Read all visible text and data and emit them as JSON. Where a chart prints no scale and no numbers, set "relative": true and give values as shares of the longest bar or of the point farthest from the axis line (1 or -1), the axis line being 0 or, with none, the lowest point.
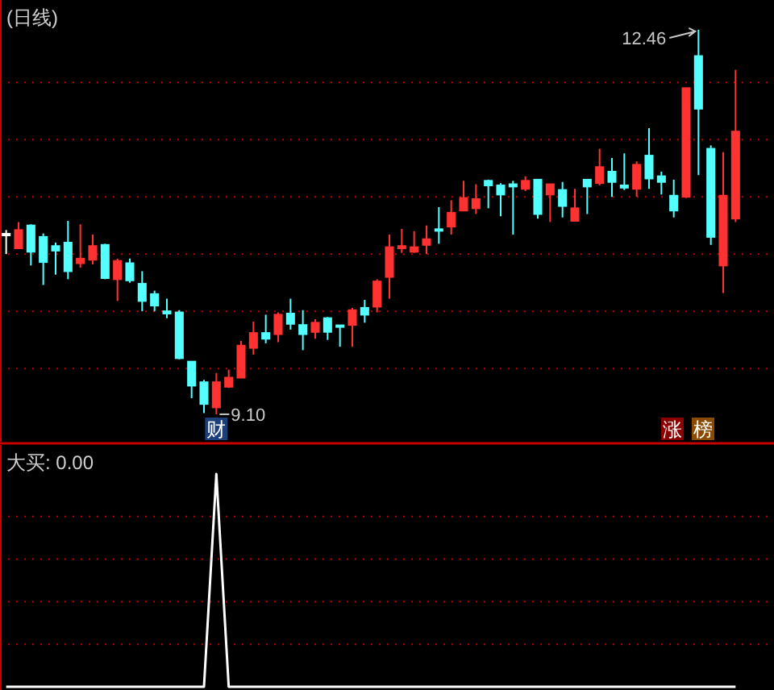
{
  "chart_data": [
    {
      "type": "candlestick",
      "title": "(日线)",
      "categories": [
        null,
        null,
        null,
        null,
        null,
        null,
        null,
        null,
        null,
        null,
        null,
        null,
        null,
        null,
        null,
        null,
        null,
        null,
        null,
        null,
        null,
        null,
        null,
        null,
        null,
        null,
        null,
        null,
        null,
        null,
        null,
        null,
        null,
        null,
        null,
        null,
        null,
        null,
        null,
        null,
        null,
        null,
        null,
        null,
        null,
        null,
        null,
        null,
        null,
        null,
        null,
        null,
        null,
        null,
        null,
        null,
        null,
        null,
        null,
        null
      ],
      "ohlc": [
        [
          10.67,
          10.71,
          10.5,
          10.67
        ],
        [
          10.55,
          10.78,
          10.55,
          10.71
        ],
        [
          10.75,
          10.76,
          10.4,
          10.52
        ],
        [
          10.65,
          10.68,
          10.23,
          10.43
        ],
        [
          10.57,
          10.6,
          10.32,
          10.53
        ],
        [
          10.6,
          10.79,
          10.28,
          10.35
        ],
        [
          10.42,
          10.76,
          10.38,
          10.46
        ],
        [
          10.45,
          10.67,
          10.41,
          10.57
        ],
        [
          10.58,
          10.59,
          10.28,
          10.29
        ],
        [
          10.28,
          10.46,
          10.09,
          10.44
        ],
        [
          10.42,
          10.46,
          10.25,
          10.27
        ],
        [
          10.24,
          10.35,
          10.0,
          10.09
        ],
        [
          10.15,
          10.18,
          10.0,
          10.05
        ],
        [
          10.0,
          10.11,
          9.94,
          9.98
        ],
        [
          9.99,
          10.01,
          9.58,
          9.59
        ],
        [
          9.56,
          9.56,
          9.24,
          9.35
        ],
        [
          9.38,
          9.4,
          9.11,
          9.19
        ],
        [
          9.16,
          9.46,
          9.1,
          9.38
        ],
        [
          9.34,
          9.49,
          9.33,
          9.42
        ],
        [
          9.42,
          9.74,
          9.42,
          9.7
        ],
        [
          9.68,
          9.91,
          9.62,
          9.81
        ],
        [
          9.81,
          9.97,
          9.72,
          9.76
        ],
        [
          9.8,
          9.99,
          9.73,
          9.97
        ],
        [
          9.98,
          10.11,
          9.84,
          9.89
        ],
        [
          9.88,
          10.01,
          9.66,
          9.8
        ],
        [
          9.82,
          9.93,
          9.76,
          9.9
        ],
        [
          9.94,
          9.95,
          9.75,
          9.82
        ],
        [
          9.88,
          9.88,
          9.69,
          9.87
        ],
        [
          9.88,
          10.03,
          9.69,
          10.01
        ],
        [
          10.03,
          10.1,
          9.9,
          9.97
        ],
        [
          10.04,
          10.28,
          9.99,
          10.26
        ],
        [
          10.3,
          10.67,
          10.11,
          10.56
        ],
        [
          10.55,
          10.72,
          10.51,
          10.57
        ],
        [
          10.52,
          10.7,
          10.51,
          10.56
        ],
        [
          10.58,
          10.75,
          10.5,
          10.63
        ],
        [
          10.72,
          10.91,
          10.59,
          10.71
        ],
        [
          10.74,
          10.97,
          10.67,
          10.86
        ],
        [
          10.88,
          11.14,
          10.88,
          10.99
        ],
        [
          10.9,
          11.11,
          10.85,
          10.98
        ],
        [
          11.14,
          11.15,
          10.9,
          11.1
        ],
        [
          11.1,
          11.12,
          10.83,
          11.02
        ],
        [
          11.11,
          11.14,
          10.67,
          11.09
        ],
        [
          11.07,
          11.18,
          11.05,
          11.14
        ],
        [
          11.15,
          11.15,
          10.81,
          10.85
        ],
        [
          11.02,
          11.11,
          10.78,
          11.11
        ],
        [
          11.06,
          11.13,
          10.82,
          10.92
        ],
        [
          10.79,
          11.07,
          10.79,
          10.9
        ],
        [
          11.15,
          11.15,
          10.85,
          11.09
        ],
        [
          11.12,
          11.42,
          11.1,
          11.26
        ],
        [
          11.22,
          11.34,
          11.0,
          11.13
        ],
        [
          11.1,
          11.38,
          11.06,
          11.08
        ],
        [
          11.07,
          11.31,
          11.0,
          11.28
        ],
        [
          11.36,
          11.6,
          11.07,
          11.16
        ],
        [
          11.18,
          11.22,
          11.02,
          11.13
        ],
        [
          11.01,
          11.15,
          10.82,
          10.88
        ],
        [
          11.0,
          11.95,
          10.99,
          11.95
        ],
        [
          12.23,
          12.46,
          11.19,
          11.77
        ],
        [
          11.42,
          11.45,
          10.58,
          10.65
        ],
        [
          10.4,
          11.39,
          10.16,
          11.01
        ],
        [
          10.81,
          12.11,
          10.78,
          11.57
        ]
      ],
      "colors": [
        "#ffffff",
        "#ff3232",
        "#54ffff",
        "#54ffff",
        "#54ffff",
        "#54ffff",
        "#ff3232",
        "#ff3232",
        "#54ffff",
        "#ff3232",
        "#54ffff",
        "#54ffff",
        "#54ffff",
        "#54ffff",
        "#54ffff",
        "#54ffff",
        "#54ffff",
        "#ff3232",
        "#ff3232",
        "#ff3232",
        "#ff3232",
        "#54ffff",
        "#ff3232",
        "#54ffff",
        "#54ffff",
        "#ff3232",
        "#54ffff",
        "#54ffff",
        "#ff3232",
        "#54ffff",
        "#ff3232",
        "#ff3232",
        "#ff3232",
        "#ff3232",
        "#ff3232",
        "#54ffff",
        "#ff3232",
        "#ff3232",
        "#ff3232",
        "#54ffff",
        "#54ffff",
        "#54ffff",
        "#ff3232",
        "#54ffff",
        "#ff3232",
        "#54ffff",
        "#ff3232",
        "#54ffff",
        "#ff3232",
        "#54ffff",
        "#54ffff",
        "#ff3232",
        "#54ffff",
        "#54ffff",
        "#54ffff",
        "#ff3232",
        "#54ffff",
        "#54ffff",
        "#ff3232",
        "#ff3232"
      ],
      "ylim": [
        8.86,
        12.72
      ],
      "yticks": [
        {
          "value": 9.5,
          "label": null
        },
        {
          "value": 10,
          "label": null
        },
        {
          "value": 10.5,
          "label": null
        },
        {
          "value": 11,
          "label": null
        },
        {
          "value": 11.5,
          "label": null
        },
        {
          "value": 12,
          "label": null
        }
      ],
      "grid": "y",
      "annotations": [
        "12.46",
        "9.10",
        "财",
        "涨",
        "榜"
      ]
    },
    {
      "type": "line",
      "title": "大买: 0.00",
      "relative": true,
      "ref_lines": [
        {
          "axis": "y",
          "value": 0.2,
          "color": "#c00000",
          "line_style": "dotted"
        },
        {
          "axis": "y",
          "value": 0.4,
          "color": "#c00000",
          "line_style": "dotted"
        },
        {
          "axis": "y",
          "value": 0.6,
          "color": "#c00000",
          "line_style": "dotted"
        },
        {
          "axis": "y",
          "value": 0.8,
          "color": "#c00000",
          "line_style": "dotted"
        }
      ],
      "categories": [
        null,
        null,
        null,
        null,
        null,
        null,
        null,
        null,
        null,
        null,
        null,
        null,
        null,
        null,
        null,
        null,
        null,
        null,
        null,
        null,
        null,
        null,
        null,
        null,
        null,
        null,
        null,
        null,
        null,
        null,
        null,
        null,
        null,
        null,
        null,
        null,
        null,
        null,
        null,
        null,
        null,
        null,
        null,
        null,
        null,
        null,
        null,
        null,
        null,
        null,
        null,
        null,
        null,
        null,
        null,
        null,
        null,
        null,
        null,
        null
      ],
      "series": [
        {
          "color": "#ffffff",
          "values": [
            0,
            0,
            0,
            0,
            0,
            0,
            0,
            0,
            0,
            0,
            0,
            0,
            0,
            0,
            0,
            0,
            0,
            1,
            0,
            0,
            0,
            0,
            0,
            0,
            0,
            0,
            0,
            0,
            0,
            0,
            0,
            0,
            0,
            0,
            0,
            0,
            0,
            0,
            0,
            0,
            0,
            0,
            0,
            0,
            0,
            0,
            0,
            0,
            0,
            0,
            0,
            0,
            0,
            0,
            0,
            0,
            0,
            0,
            0,
            0
          ]
        }
      ]
    }
  ]
}
